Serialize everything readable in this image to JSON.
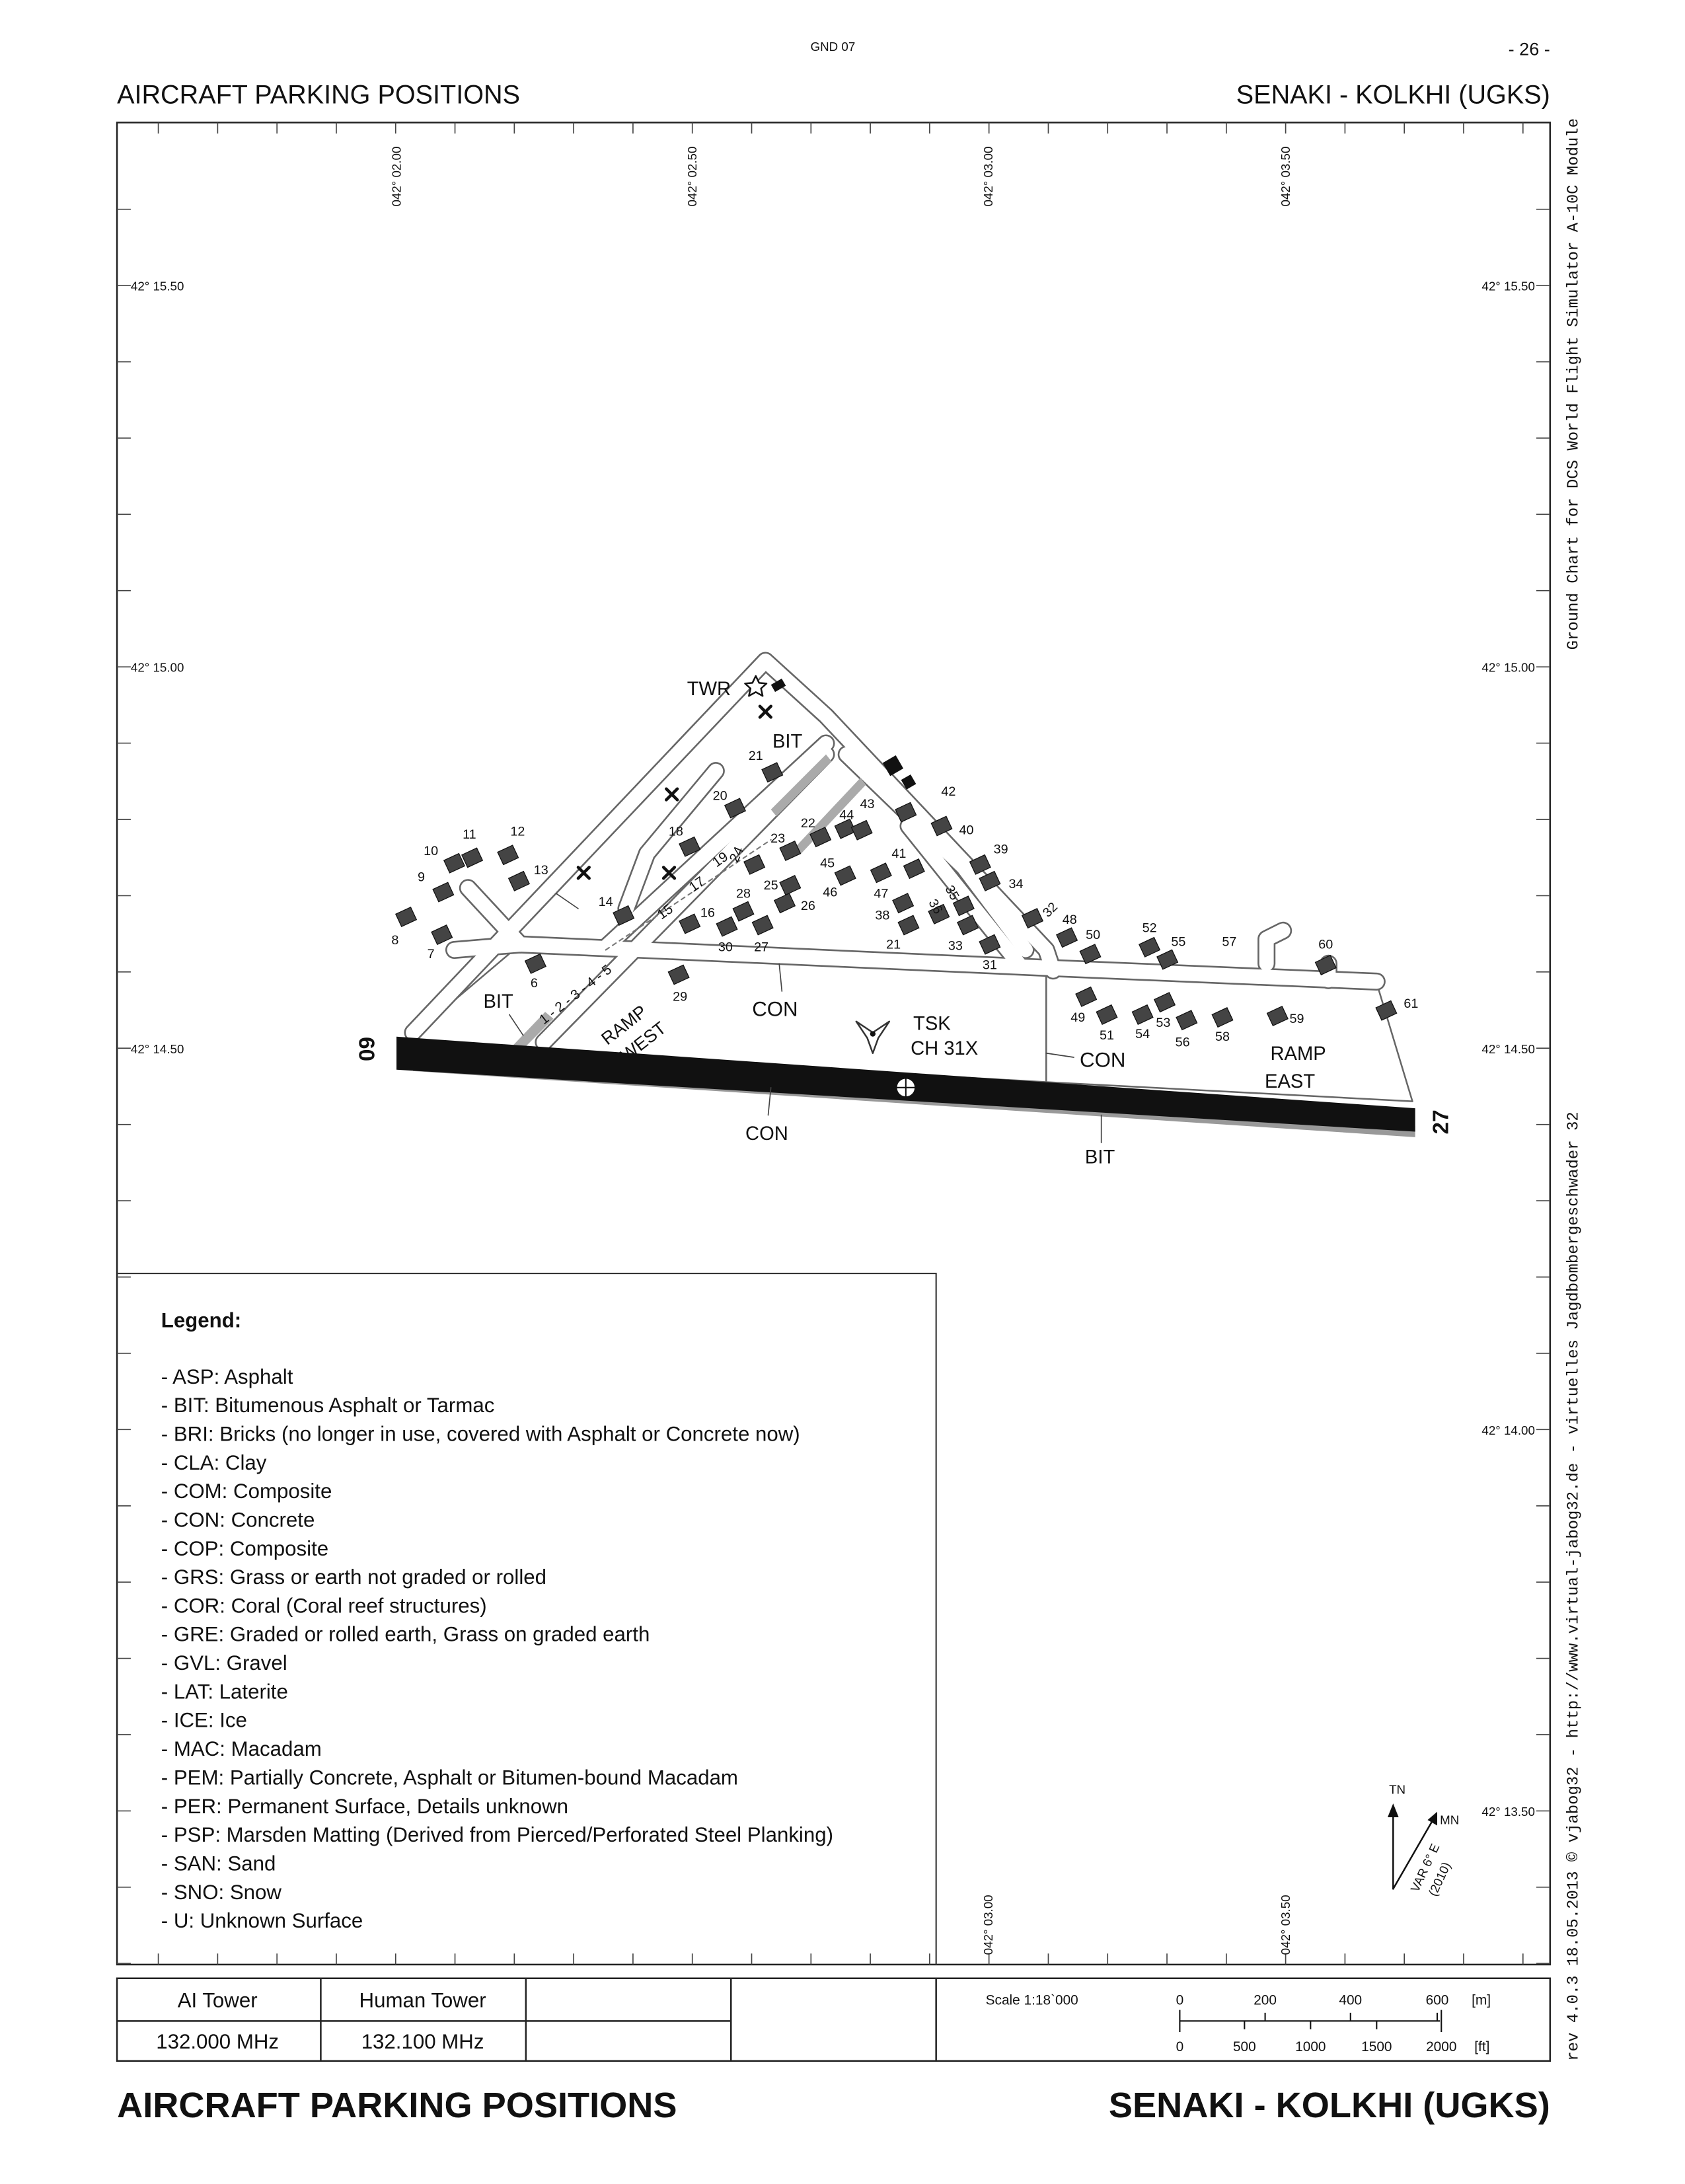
{
  "header": {
    "code": "GND 07",
    "page": "- 26 -",
    "title_left": "AIRCRAFT PARKING POSITIONS",
    "title_right": "SENAKI - KOLKHI (UGKS)"
  },
  "side_text": {
    "top": "Ground Chart for DCS World Flight Simulator A-10C Module",
    "bottom": "rev 4.0.3   18.05.2013   © vjabog32 - http://www.virtual-jabog32.de - virtuelles Jagdbombergeschwader 32"
  },
  "grid": {
    "lon_top": [
      "042° 02.00",
      "042° 02.50",
      "042° 03.00",
      "042° 03.50"
    ],
    "lon_bottom": [
      "042° 03.00",
      "042° 03.50"
    ],
    "lat_left": [
      "42° 15.50",
      "42° 15.00",
      "42° 14.50"
    ],
    "lat_right": [
      "42° 15.50",
      "42° 15.00",
      "42° 14.50",
      "42° 14.00",
      "42° 13.50"
    ]
  },
  "map_labels": [
    "TWR",
    "BIT",
    "BIT",
    "BIT",
    "CON",
    "CON",
    "CON",
    "RAMP",
    "WEST",
    "TSK",
    "CH 31X",
    "RAMP",
    "EAST",
    "09",
    "27",
    "1 - 2 - 3 - 4 - 5",
    "15",
    "17",
    "19",
    "24"
  ],
  "stands": [
    "8",
    "7",
    "9",
    "10",
    "11",
    "12",
    "13",
    "6",
    "14",
    "18",
    "20",
    "21",
    "16",
    "29",
    "30",
    "28",
    "27",
    "25",
    "26",
    "23",
    "22",
    "45",
    "44",
    "43",
    "46",
    "47",
    "41",
    "42",
    "40",
    "39",
    "34",
    "38",
    "21",
    "36",
    "35",
    "33",
    "31",
    "32",
    "48",
    "50",
    "52",
    "55",
    "57",
    "60",
    "61",
    "49",
    "51",
    "54",
    "53",
    "56",
    "58",
    "59"
  ],
  "legend": {
    "title": "Legend:",
    "items": [
      "- ASP: Asphalt",
      "- BIT: Bitumenous Asphalt or Tarmac",
      "- BRI: Bricks (no longer in use, covered with Asphalt or Concrete now)",
      "- CLA: Clay",
      "- COM: Composite",
      "- CON: Concrete",
      "- COP: Composite",
      "- GRS: Grass or earth not graded or rolled",
      "- COR: Coral (Coral reef structures)",
      "- GRE: Graded or rolled earth, Grass on graded earth",
      "- GVL: Gravel",
      "- LAT: Laterite",
      "- ICE: Ice",
      "- MAC: Macadam",
      "- PEM: Partially Concrete, Asphalt or Bitumen-bound Macadam",
      "- PER: Permanent Surface, Details unknown",
      "- PSP: Marsden Matting (Derived from Pierced/Perforated Steel Planking)",
      "- SAN: Sand",
      "- SNO: Snow",
      "- U: Unknown Surface"
    ]
  },
  "north_arrow": {
    "tn": "TN",
    "mn": "MN",
    "var": "VAR 6° E",
    "year": "(2010)"
  },
  "frequencies": {
    "headers": [
      "AI Tower",
      "Human Tower"
    ],
    "values": [
      "132.000 MHz",
      "132.100 MHz"
    ]
  },
  "scale": {
    "title": "Scale 1:18`000",
    "meters": [
      "0",
      "200",
      "400",
      "600"
    ],
    "meters_unit": "[m]",
    "feet": [
      "0",
      "500",
      "1000",
      "1500",
      "2000"
    ],
    "feet_unit": "[ft]"
  },
  "footer": {
    "title_left": "AIRCRAFT PARKING POSITIONS",
    "title_right": "SENAKI - KOLKHI (UGKS)"
  }
}
